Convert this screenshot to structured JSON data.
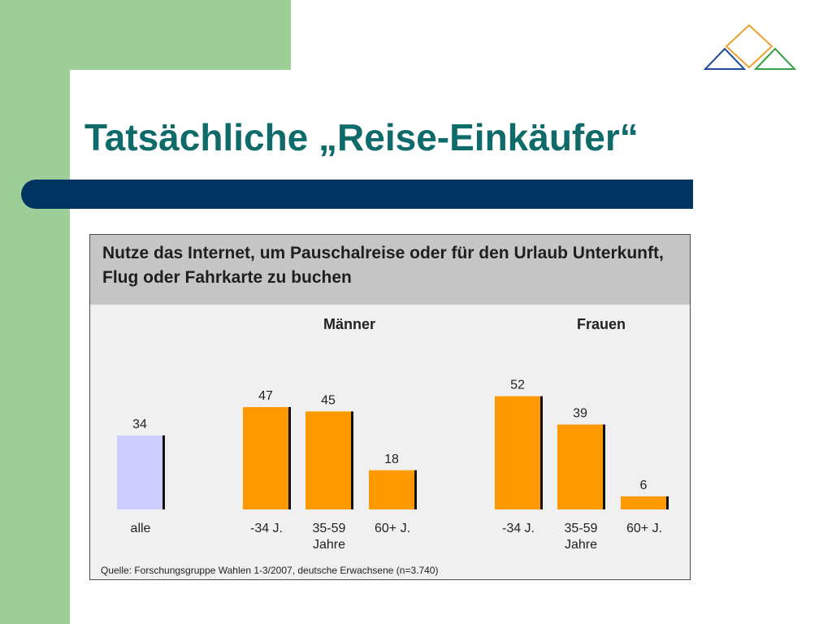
{
  "slide": {
    "title": "Tatsächliche „Reise-Einkäufer“"
  },
  "colors": {
    "green": "#9dce98",
    "title_teal": "#0e6b69",
    "band_blue": "#003461",
    "bar_orange": "#ff9900",
    "bar_lavender": "#ccccff",
    "logo_blue": "#1f4e9b",
    "logo_orange": "#f0a030",
    "logo_green": "#3aa046"
  },
  "logo": {
    "icon": "triangles-diamond-logo-icon"
  },
  "chart_data": {
    "type": "bar",
    "title": "Nutze das Internet, um Pauschalreise oder für den Urlaub Unterkunft, Flug oder Fahrkarte zu buchen",
    "groups": [
      "Männer",
      "Frauen"
    ],
    "categories": [
      {
        "label": "alle",
        "value": 34,
        "group": null,
        "color": "#ccccff"
      },
      {
        "label": "-34 J.",
        "value": 47,
        "group": "Männer",
        "color": "#ff9900"
      },
      {
        "label": "35-59\nJahre",
        "value": 45,
        "group": "Männer",
        "color": "#ff9900"
      },
      {
        "label": "60+ J.",
        "value": 18,
        "group": "Männer",
        "color": "#ff9900"
      },
      {
        "label": "-34 J.",
        "value": 52,
        "group": "Frauen",
        "color": "#ff9900"
      },
      {
        "label": "35-59\nJahre",
        "value": 39,
        "group": "Frauen",
        "color": "#ff9900"
      },
      {
        "label": "60+ J.",
        "value": 6,
        "group": "Frauen",
        "color": "#ff9900"
      }
    ],
    "source": "Quelle: Forschungsgruppe Wahlen 1-3/2007, deutsche Erwachsene (n=3.740)",
    "ylim": [
      0,
      60
    ],
    "grid": false,
    "legend": "none"
  }
}
